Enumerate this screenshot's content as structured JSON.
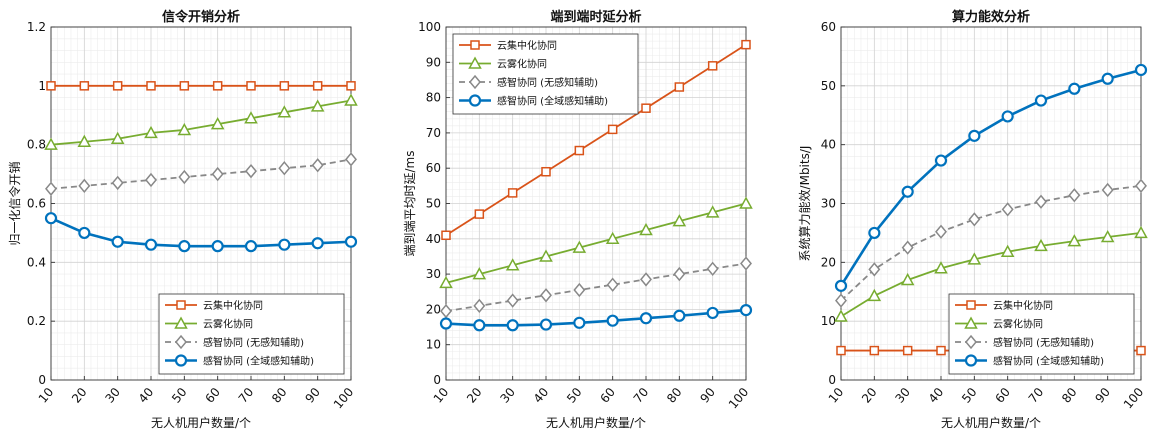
{
  "colors": {
    "cloud": "#D95319",
    "fog": "#77AC30",
    "sense": "#888888",
    "senseFull": "#0072BD"
  },
  "chart_data": [
    {
      "type": "line",
      "title": "信令开销分析",
      "xlabel": "无人机用户数量/个",
      "ylabel": "归一化信令开销",
      "x": [
        10,
        20,
        30,
        40,
        50,
        60,
        70,
        80,
        90,
        100
      ],
      "xticks": [
        "10",
        "20",
        "30",
        "40",
        "50",
        "60",
        "70",
        "80",
        "90",
        "100"
      ],
      "xlim": [
        10,
        100
      ],
      "ylim": [
        0,
        1.2
      ],
      "yticks": [
        "0",
        "0.2",
        "0.4",
        "0.6",
        "0.8",
        "1",
        "1.2"
      ],
      "grid": true,
      "legend": "bottom-right",
      "series": [
        {
          "name": "云集中化协同",
          "color": "#D95319",
          "marker": "square",
          "dash": false,
          "values": [
            1,
            1,
            1,
            1,
            1,
            1,
            1,
            1,
            1,
            1
          ]
        },
        {
          "name": "云雾化协同",
          "color": "#77AC30",
          "marker": "triangle",
          "dash": false,
          "values": [
            0.8,
            0.81,
            0.82,
            0.84,
            0.85,
            0.87,
            0.89,
            0.91,
            0.93,
            0.95
          ]
        },
        {
          "name": "感智协同 (无感知辅助)",
          "color": "#888888",
          "marker": "diamond",
          "dash": true,
          "values": [
            0.65,
            0.66,
            0.67,
            0.68,
            0.69,
            0.7,
            0.71,
            0.72,
            0.73,
            0.75
          ]
        },
        {
          "name": "感智协同 (全域感知辅助)",
          "color": "#0072BD",
          "marker": "circle",
          "dash": false,
          "values": [
            0.55,
            0.5,
            0.47,
            0.46,
            0.455,
            0.455,
            0.455,
            0.46,
            0.465,
            0.47
          ]
        }
      ]
    },
    {
      "type": "line",
      "title": "端到端时延分析",
      "xlabel": "无人机用户数量/个",
      "ylabel": "端到端平均时延/ms",
      "x": [
        10,
        20,
        30,
        40,
        50,
        60,
        70,
        80,
        90,
        100
      ],
      "xticks": [
        "10",
        "20",
        "30",
        "40",
        "50",
        "60",
        "70",
        "80",
        "90",
        "100"
      ],
      "xlim": [
        10,
        100
      ],
      "ylim": [
        0,
        100
      ],
      "yticks": [
        "0",
        "10",
        "20",
        "30",
        "40",
        "50",
        "60",
        "70",
        "80",
        "90",
        "100"
      ],
      "grid": true,
      "legend": "top-left",
      "series": [
        {
          "name": "云集中化协同",
          "color": "#D95319",
          "marker": "square",
          "dash": false,
          "values": [
            41,
            47,
            53,
            59,
            65,
            71,
            77,
            83,
            89,
            95
          ]
        },
        {
          "name": "云雾化协同",
          "color": "#77AC30",
          "marker": "triangle",
          "dash": false,
          "values": [
            27.5,
            30,
            32.5,
            35,
            37.5,
            40,
            42.5,
            45,
            47.5,
            50
          ]
        },
        {
          "name": "感智协同 (无感知辅助)",
          "color": "#888888",
          "marker": "diamond",
          "dash": true,
          "values": [
            19.5,
            21,
            22.5,
            24,
            25.5,
            27,
            28.5,
            30,
            31.5,
            33
          ]
        },
        {
          "name": "感智协同 (全域感知辅助)",
          "color": "#0072BD",
          "marker": "circle",
          "dash": false,
          "values": [
            16,
            15.5,
            15.5,
            15.7,
            16.2,
            16.8,
            17.5,
            18.2,
            19,
            19.8
          ]
        }
      ]
    },
    {
      "type": "line",
      "title": "算力能效分析",
      "xlabel": "无人机用户数量/个",
      "ylabel": "系统算力能效/Mbits/J",
      "x": [
        10,
        20,
        30,
        40,
        50,
        60,
        70,
        80,
        90,
        100
      ],
      "xticks": [
        "10",
        "20",
        "30",
        "40",
        "50",
        "60",
        "70",
        "80",
        "90",
        "100"
      ],
      "xlim": [
        10,
        100
      ],
      "ylim": [
        0,
        60
      ],
      "yticks": [
        "0",
        "10",
        "20",
        "30",
        "40",
        "50",
        "60"
      ],
      "grid": true,
      "legend": "bottom-right",
      "series": [
        {
          "name": "云集中化协同",
          "color": "#D95319",
          "marker": "square",
          "dash": false,
          "values": [
            5,
            5,
            5,
            5,
            5,
            5,
            5,
            5,
            5,
            5
          ]
        },
        {
          "name": "云雾化协同",
          "color": "#77AC30",
          "marker": "triangle",
          "dash": false,
          "values": [
            10.8,
            14.3,
            17,
            19,
            20.5,
            21.8,
            22.8,
            23.6,
            24.3,
            25
          ]
        },
        {
          "name": "感智协同 (无感知辅助)",
          "color": "#888888",
          "marker": "diamond",
          "dash": true,
          "values": [
            13.5,
            18.8,
            22.5,
            25.2,
            27.3,
            29,
            30.3,
            31.4,
            32.3,
            33
          ]
        },
        {
          "name": "感智协同 (全域感知辅助)",
          "color": "#0072BD",
          "marker": "circle",
          "dash": false,
          "values": [
            16,
            25,
            32,
            37.3,
            41.5,
            44.8,
            47.5,
            49.5,
            51.2,
            52.7
          ]
        }
      ]
    }
  ]
}
